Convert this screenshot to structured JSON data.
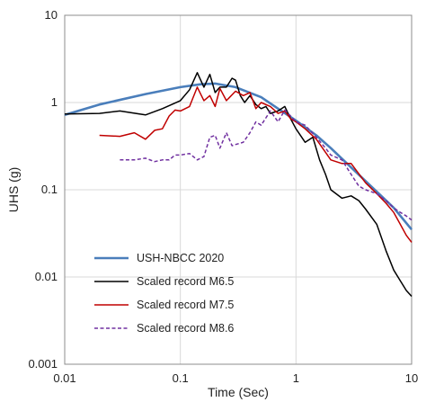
{
  "chart_data": {
    "type": "line",
    "xlabel": "Time (Sec)",
    "ylabel": "UHS (g)",
    "xscale": "log",
    "yscale": "log",
    "xlim": [
      0.01,
      10
    ],
    "ylim": [
      0.001,
      10
    ],
    "x_ticks": [
      "0.01",
      "0.1",
      "1",
      "10"
    ],
    "y_ticks": [
      "0.001",
      "0.01",
      "0.1",
      "1",
      "10"
    ],
    "grid": true,
    "legend_position": "bottom-left",
    "series": [
      {
        "name": "USH-NBCC 2020",
        "color": "#4a7ebb",
        "dash": "solid",
        "x": [
          0.01,
          0.02,
          0.05,
          0.1,
          0.15,
          0.2,
          0.3,
          0.5,
          0.7,
          1.0,
          1.5,
          2.0,
          3.0,
          5.0,
          7.0,
          10.0
        ],
        "y": [
          0.72,
          0.95,
          1.25,
          1.5,
          1.62,
          1.65,
          1.5,
          1.15,
          0.85,
          0.62,
          0.42,
          0.3,
          0.18,
          0.095,
          0.062,
          0.035
        ]
      },
      {
        "name": "Scaled record M6.5",
        "color": "#000000",
        "dash": "solid",
        "x": [
          0.01,
          0.02,
          0.03,
          0.05,
          0.07,
          0.1,
          0.12,
          0.14,
          0.16,
          0.18,
          0.2,
          0.22,
          0.25,
          0.28,
          0.3,
          0.33,
          0.36,
          0.4,
          0.45,
          0.5,
          0.55,
          0.6,
          0.7,
          0.8,
          0.9,
          1.0,
          1.2,
          1.4,
          1.6,
          1.8,
          2.0,
          2.5,
          3.0,
          3.5,
          4.0,
          5.0,
          6.0,
          7.0,
          8.0,
          9.0,
          10.0
        ],
        "y": [
          0.74,
          0.75,
          0.8,
          0.72,
          0.85,
          1.05,
          1.4,
          2.2,
          1.5,
          2.1,
          1.3,
          1.5,
          1.5,
          1.9,
          1.8,
          1.2,
          1.0,
          1.2,
          0.95,
          0.85,
          0.9,
          0.75,
          0.8,
          0.9,
          0.65,
          0.5,
          0.35,
          0.4,
          0.22,
          0.15,
          0.1,
          0.08,
          0.085,
          0.075,
          0.06,
          0.04,
          0.02,
          0.012,
          0.009,
          0.007,
          0.006
        ]
      },
      {
        "name": "Scaled record M7.5",
        "color": "#c00000",
        "dash": "solid",
        "x": [
          0.02,
          0.03,
          0.04,
          0.05,
          0.06,
          0.07,
          0.08,
          0.09,
          0.1,
          0.12,
          0.14,
          0.16,
          0.18,
          0.2,
          0.22,
          0.25,
          0.3,
          0.35,
          0.4,
          0.45,
          0.5,
          0.6,
          0.7,
          0.8,
          0.9,
          1.0,
          1.2,
          1.5,
          2.0,
          2.5,
          3.0,
          4.0,
          5.0,
          6.0,
          7.0,
          8.0,
          9.0,
          10.0
        ],
        "y": [
          0.42,
          0.41,
          0.45,
          0.38,
          0.48,
          0.5,
          0.7,
          0.82,
          0.8,
          0.9,
          1.5,
          1.05,
          1.2,
          0.9,
          1.45,
          1.05,
          1.35,
          1.2,
          1.3,
          0.85,
          1.0,
          0.9,
          0.75,
          0.8,
          0.65,
          0.6,
          0.5,
          0.38,
          0.22,
          0.2,
          0.2,
          0.12,
          0.09,
          0.07,
          0.055,
          0.04,
          0.03,
          0.025
        ]
      },
      {
        "name": "Scaled record M8.6",
        "color": "#7030a0",
        "dash": "dashed",
        "x": [
          0.03,
          0.04,
          0.05,
          0.06,
          0.07,
          0.08,
          0.09,
          0.1,
          0.12,
          0.14,
          0.16,
          0.18,
          0.2,
          0.22,
          0.25,
          0.28,
          0.3,
          0.35,
          0.4,
          0.45,
          0.5,
          0.6,
          0.7,
          0.8,
          0.9,
          1.0,
          1.2,
          1.5,
          1.8,
          2.0,
          2.5,
          3.0,
          3.5,
          4.0,
          5.0,
          6.0,
          7.0,
          8.0,
          9.0,
          10.0
        ],
        "y": [
          0.22,
          0.22,
          0.23,
          0.21,
          0.22,
          0.22,
          0.25,
          0.25,
          0.26,
          0.22,
          0.24,
          0.4,
          0.42,
          0.3,
          0.45,
          0.32,
          0.33,
          0.35,
          0.45,
          0.6,
          0.55,
          0.8,
          0.6,
          0.82,
          0.7,
          0.6,
          0.55,
          0.4,
          0.3,
          0.25,
          0.22,
          0.15,
          0.11,
          0.1,
          0.09,
          0.075,
          0.062,
          0.055,
          0.05,
          0.045
        ]
      }
    ]
  }
}
